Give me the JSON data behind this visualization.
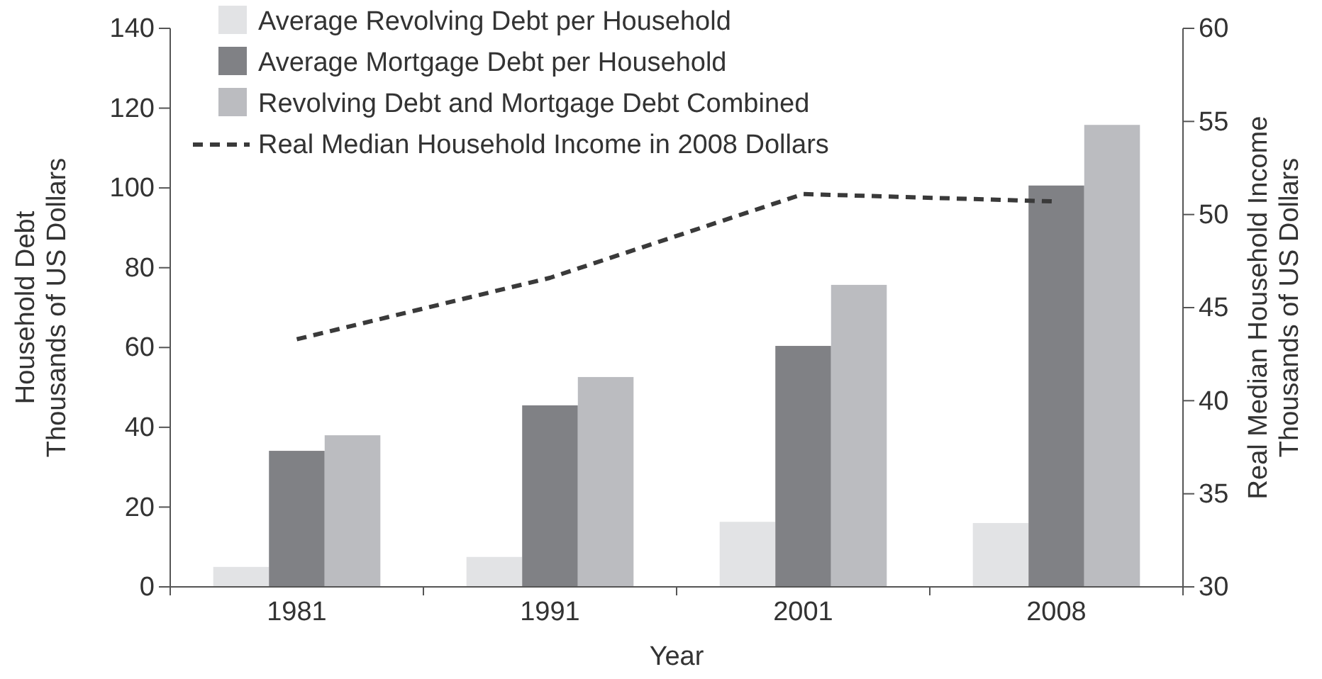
{
  "chart_data": {
    "type": "bar",
    "xlabel": "Year",
    "ylabel": "Household Debt\nThousands of US Dollars",
    "y2label": "Real Median Household Income\nThousands of US Dollars",
    "categories": [
      "1981",
      "1991",
      "2001",
      "2008"
    ],
    "series": [
      {
        "name": "Average Revolving Debt per Household",
        "color": "#e2e3e5",
        "values": [
          5.0,
          7.5,
          16.3,
          16.0
        ]
      },
      {
        "name": "Average Mortgage Debt per Household",
        "color": "#808185",
        "values": [
          34.1,
          45.5,
          60.4,
          100.6
        ]
      },
      {
        "name": "Revolving Debt and Mortgage Debt Combined",
        "color": "#bbbcc0",
        "values": [
          38.0,
          52.6,
          75.7,
          115.8
        ]
      },
      {
        "name": "Real Median Household Income in 2008 Dollars",
        "type": "line",
        "axis": "y2",
        "color": "#3a3a3a",
        "line_style": "dashed",
        "values": [
          43.3,
          46.6,
          51.1,
          50.7
        ]
      }
    ],
    "ylim": [
      0,
      140
    ],
    "yticks": [
      0,
      20,
      40,
      60,
      80,
      100,
      120,
      140
    ],
    "y2lim": [
      30,
      60
    ],
    "y2ticks": [
      30,
      35,
      40,
      45,
      50,
      55,
      60
    ],
    "grid": false,
    "legend": "top left",
    "marker": "none"
  }
}
